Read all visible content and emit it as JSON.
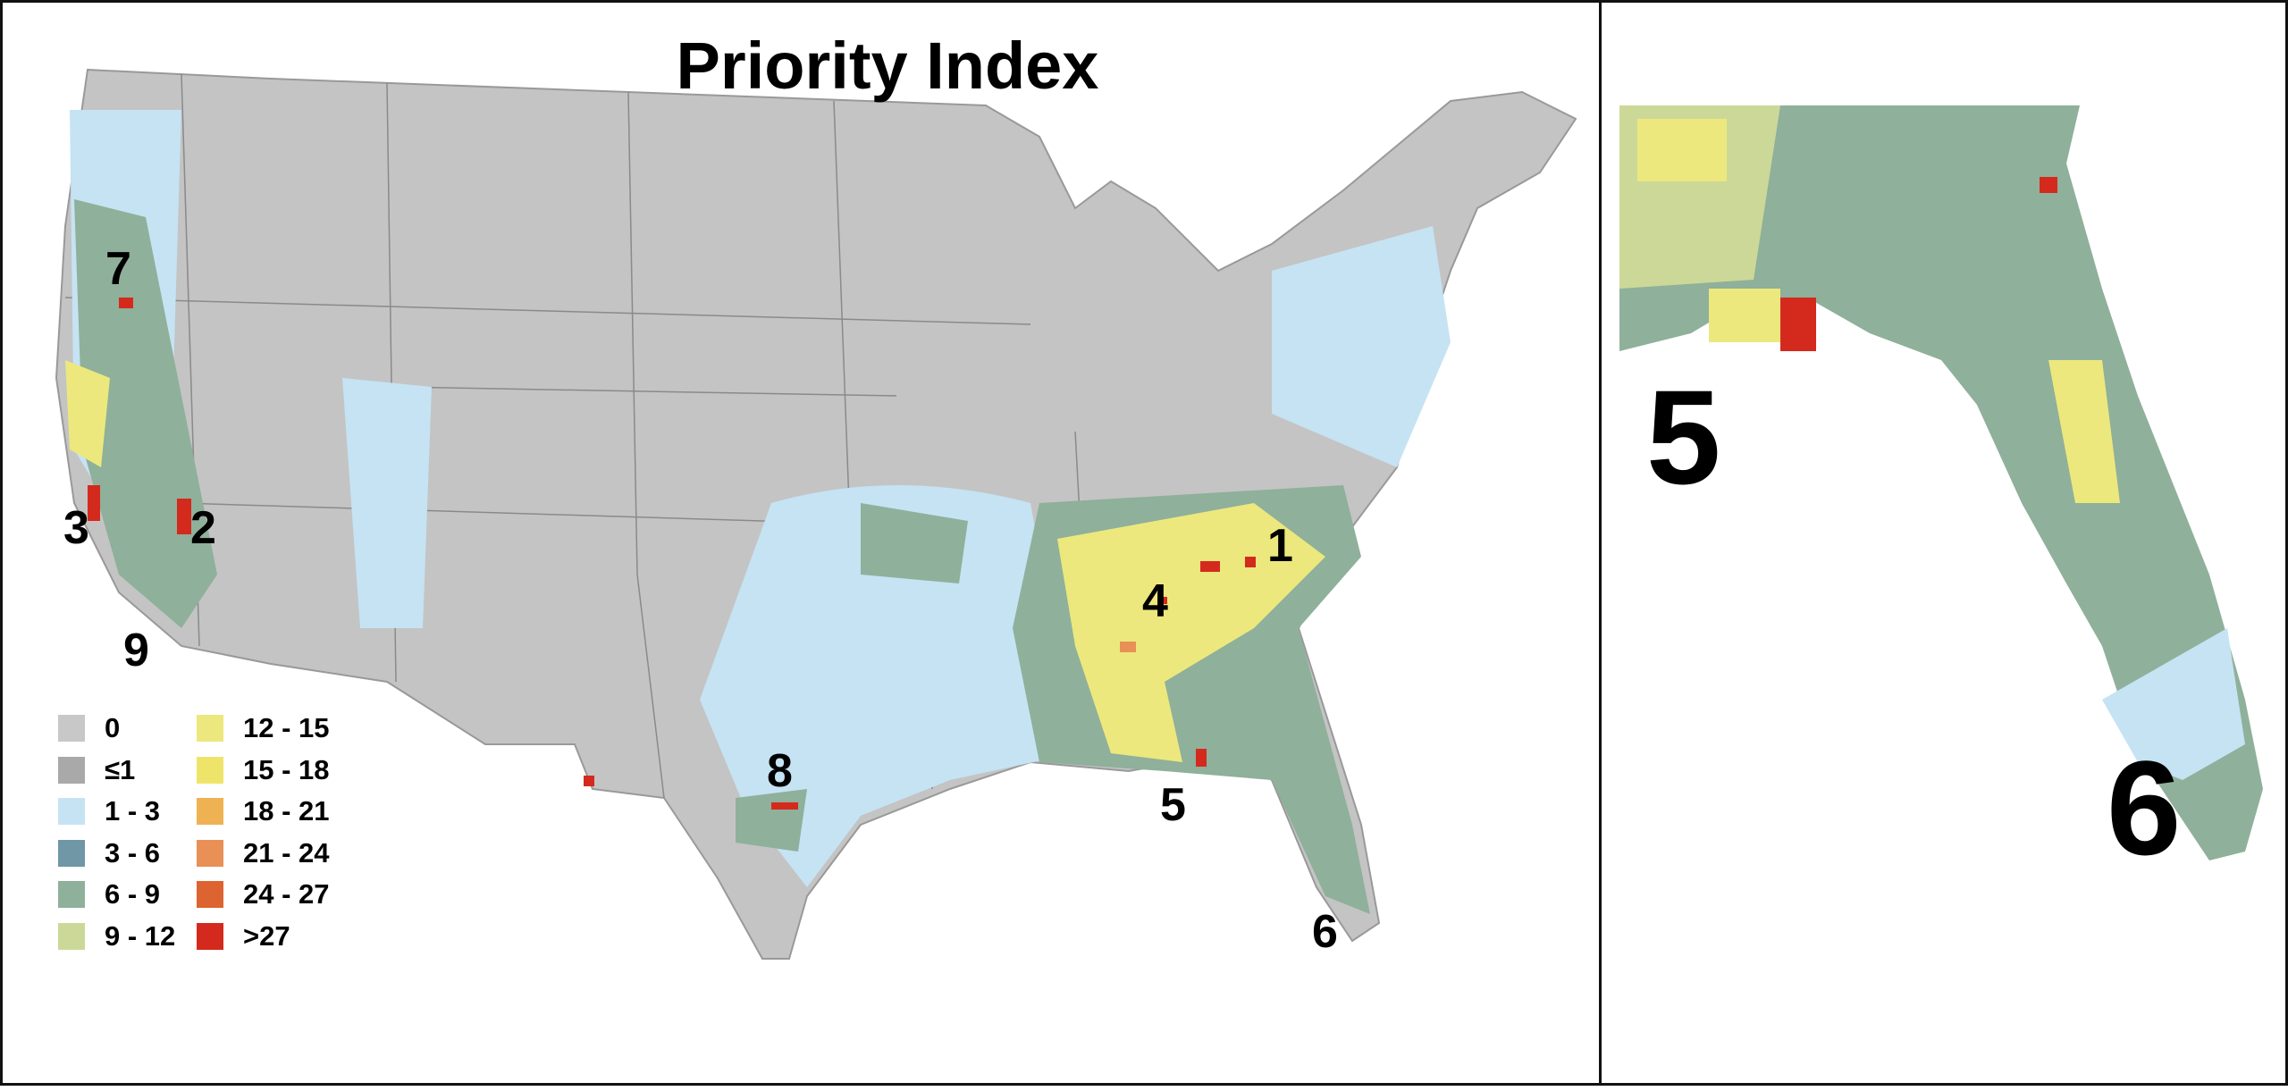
{
  "title": "Priority Index",
  "legend": [
    {
      "label": "0",
      "color": "#c8c8c8"
    },
    {
      "label": "≤1",
      "color": "#a9a9a9"
    },
    {
      "label": "1 - 3",
      "color": "#c5e3f3"
    },
    {
      "label": "3 - 6",
      "color": "#6f97a6"
    },
    {
      "label": "6 - 9",
      "color": "#8fb09a"
    },
    {
      "label": "9 - 12",
      "color": "#ccd898"
    },
    {
      "label": "12 - 15",
      "color": "#ece87e"
    },
    {
      "label": "15 - 18",
      "color": "#efe46a"
    },
    {
      "label": "18 - 21",
      "color": "#eeb252"
    },
    {
      "label": "21 - 24",
      "color": "#e89055"
    },
    {
      "label": "24 - 27",
      "color": "#dd6330"
    },
    {
      "label": ">27",
      "color": "#d42a1e"
    }
  ],
  "markers": [
    "1",
    "2",
    "3",
    "4",
    "5",
    "6",
    "7",
    "8",
    "9"
  ],
  "inset": {
    "markers": [
      "5",
      "6"
    ]
  }
}
